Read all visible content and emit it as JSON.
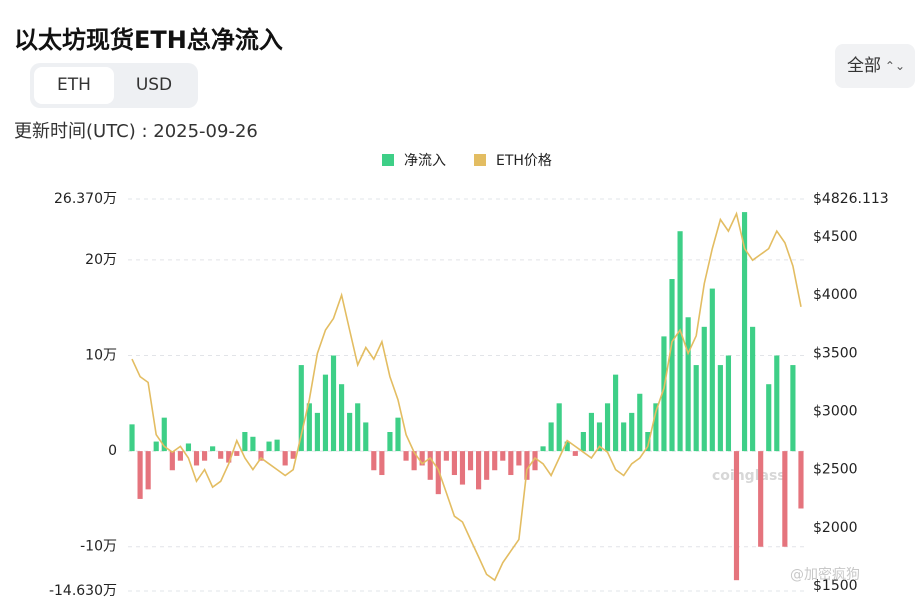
{
  "header": {
    "title": "以太坊现货ETH总净流入",
    "toggle": [
      "ETH",
      "USD"
    ],
    "range": "全部",
    "updated": "更新时间(UTC) : 2025-09-26"
  },
  "watermarks": [
    "coinglass",
    "@加密疯狗"
  ],
  "chart_data": {
    "type": "bar-line",
    "series": [
      {
        "name": "净流入",
        "type": "bar",
        "color": "#3ecf87",
        "negative_color": "#e5747d",
        "values": [
          2.8,
          -5,
          -4,
          1,
          3.5,
          -2,
          -1,
          0.8,
          -1.5,
          -1,
          0.5,
          -0.8,
          -1.2,
          -0.5,
          2,
          1.5,
          -1,
          1,
          1.2,
          -1.5,
          -0.8,
          9,
          5,
          4,
          8,
          10,
          7,
          4,
          5,
          3,
          -2,
          -2.5,
          2,
          3.5,
          -1,
          -2,
          -1.5,
          -3,
          -4.5,
          -1,
          -2.5,
          -3.5,
          -2,
          -4,
          -3,
          -2,
          -1,
          -2.5,
          -1.5,
          -3,
          -2,
          0.5,
          3,
          5,
          1,
          -0.5,
          2,
          4,
          3,
          5,
          8,
          3,
          4,
          6,
          2,
          5,
          12,
          18,
          23,
          14,
          9,
          13,
          17,
          9,
          10,
          -13.5,
          25,
          13,
          -10,
          7,
          10,
          -10,
          9,
          -6
        ]
      },
      {
        "name": "ETH价格",
        "type": "line",
        "color": "#e3bd62",
        "axis": "y2",
        "values": [
          3450,
          3300,
          3250,
          2800,
          2700,
          2650,
          2700,
          2600,
          2400,
          2500,
          2350,
          2400,
          2550,
          2750,
          2600,
          2500,
          2600,
          2550,
          2500,
          2450,
          2500,
          2800,
          3100,
          3500,
          3700,
          3800,
          4000,
          3700,
          3400,
          3550,
          3450,
          3600,
          3300,
          3100,
          2800,
          2650,
          2550,
          2600,
          2500,
          2300,
          2100,
          2050,
          1900,
          1750,
          1600,
          1550,
          1700,
          1800,
          1900,
          2500,
          2600,
          2550,
          2450,
          2600,
          2750,
          2700,
          2650,
          2600,
          2700,
          2650,
          2500,
          2450,
          2550,
          2600,
          2700,
          3000,
          3200,
          3600,
          3700,
          3500,
          3650,
          4100,
          4400,
          4650,
          4550,
          4700,
          4400,
          4300,
          4350,
          4400,
          4550,
          4450,
          4250,
          3900
        ]
      }
    ],
    "ylim": [
      -14.63,
      26.37
    ],
    "yticks": [
      {
        "value": -14.63,
        "label": "-14.630万"
      },
      {
        "value": -10,
        "label": "-10万"
      },
      0,
      {
        "value": 10,
        "label": "10万"
      },
      {
        "value": 20,
        "label": "20万"
      },
      {
        "value": 26.37,
        "label": "26.370万"
      }
    ],
    "y2lim": [
      1457,
      4826.113
    ],
    "y2ticks": [
      {
        "value": 1500,
        "label": "$1500"
      },
      {
        "value": 2000,
        "label": "$2000"
      },
      {
        "value": 2500,
        "label": "$2500"
      },
      {
        "value": 3000,
        "label": "$3000"
      },
      {
        "value": 3500,
        "label": "$3500"
      },
      {
        "value": 4000,
        "label": "$4000"
      },
      {
        "value": 4500,
        "label": "$4500"
      },
      {
        "value": 4826.113,
        "label": "$4826.113"
      }
    ],
    "grid": true
  }
}
